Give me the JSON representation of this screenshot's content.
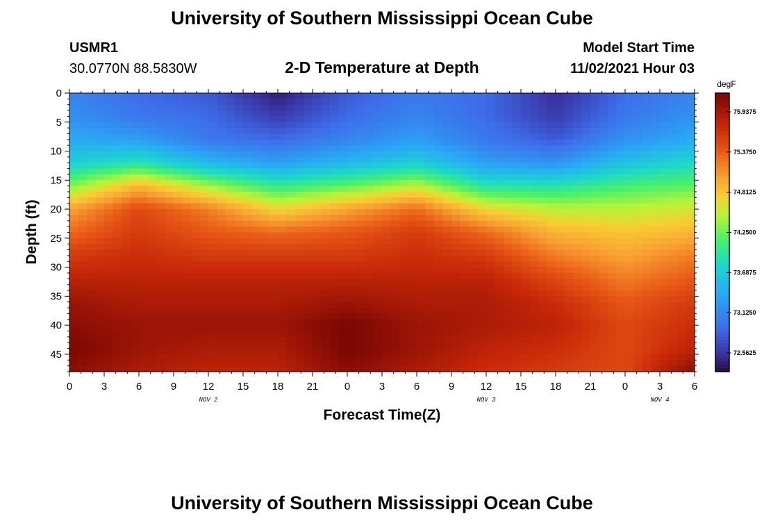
{
  "header": {
    "title": "University of Southern Mississippi Ocean Cube",
    "station": "USMR1",
    "coords": "30.0770N  88.5830W",
    "subtitle": "2-D Temperature at Depth",
    "start_label": "Model Start Time",
    "start_value": "11/02/2021 Hour 03"
  },
  "footer": {
    "title": "University of Southern Mississippi Ocean Cube"
  },
  "chart_data": {
    "type": "heatmap",
    "xlabel": "Forecast Time(Z)",
    "ylabel": "Depth (ft)",
    "xlim": [
      0,
      54
    ],
    "ylim": [
      48,
      0
    ],
    "x_ticks": [
      0,
      3,
      6,
      9,
      12,
      15,
      18,
      21,
      24,
      27,
      30,
      33,
      36,
      39,
      42,
      45,
      48,
      51,
      54
    ],
    "x_tick_labels": [
      "0",
      "3",
      "6",
      "9",
      "12",
      "15",
      "18",
      "21",
      "0",
      "3",
      "6",
      "9",
      "12",
      "15",
      "18",
      "21",
      "0",
      "3",
      "6"
    ],
    "y_ticks": [
      0,
      5,
      10,
      15,
      20,
      25,
      30,
      35,
      40,
      45
    ],
    "y_tick_labels": [
      "0",
      "5",
      "10",
      "15",
      "20",
      "25",
      "30",
      "35",
      "40",
      "45"
    ],
    "date_labels": [
      {
        "x": 12,
        "text": "NOV 2"
      },
      {
        "x": 36,
        "text": "NOV 3"
      },
      {
        "x": 51,
        "text": "NOV 4"
      }
    ],
    "colorbar": {
      "unit": "degF",
      "min": 72.3,
      "max": 76.2,
      "tick_values": [
        75.9375,
        75.375,
        74.8125,
        74.25,
        73.6875,
        73.125,
        72.5625
      ],
      "tick_labels": [
        "75.9375",
        "75.3750",
        "74.8125",
        "74.2500",
        "73.6875",
        "73.1250",
        "72.5625"
      ]
    },
    "grid_x": [
      0,
      6,
      12,
      18,
      24,
      30,
      36,
      42,
      48,
      54
    ],
    "grid_y": [
      0,
      4,
      8,
      12,
      16,
      20,
      24,
      28,
      32,
      36,
      40,
      44,
      48
    ],
    "values": [
      [
        73.1,
        72.9,
        72.8,
        72.4,
        72.8,
        73.0,
        72.9,
        72.5,
        72.9,
        73.1
      ],
      [
        73.2,
        73.0,
        72.9,
        72.6,
        72.9,
        73.1,
        72.9,
        72.6,
        73.0,
        73.2
      ],
      [
        73.4,
        73.3,
        73.0,
        72.9,
        73.1,
        73.3,
        73.0,
        72.8,
        73.2,
        73.4
      ],
      [
        73.7,
        73.9,
        73.5,
        73.3,
        73.5,
        73.7,
        73.3,
        73.2,
        73.6,
        73.8
      ],
      [
        74.3,
        74.9,
        74.4,
        74.0,
        74.2,
        74.5,
        73.9,
        73.9,
        74.1,
        74.2
      ],
      [
        75.0,
        75.5,
        75.2,
        74.7,
        75.0,
        75.3,
        74.7,
        74.5,
        74.5,
        74.6
      ],
      [
        75.3,
        75.6,
        75.4,
        75.3,
        75.4,
        75.6,
        75.3,
        74.9,
        74.8,
        74.9
      ],
      [
        75.6,
        75.7,
        75.6,
        75.6,
        75.6,
        75.7,
        75.6,
        75.2,
        75.0,
        75.2
      ],
      [
        75.8,
        75.8,
        75.8,
        75.8,
        75.8,
        75.8,
        75.8,
        75.5,
        75.2,
        75.4
      ],
      [
        76.0,
        75.9,
        75.9,
        75.9,
        76.0,
        75.9,
        75.9,
        75.7,
        75.4,
        75.6
      ],
      [
        76.1,
        76.0,
        76.0,
        76.0,
        76.2,
        76.0,
        75.9,
        75.8,
        75.5,
        75.7
      ],
      [
        76.2,
        76.0,
        75.9,
        75.9,
        76.2,
        76.0,
        75.8,
        75.7,
        75.5,
        75.8
      ],
      [
        76.1,
        75.9,
        75.8,
        75.8,
        76.1,
        75.9,
        75.7,
        75.6,
        75.5,
        76.1
      ]
    ]
  }
}
